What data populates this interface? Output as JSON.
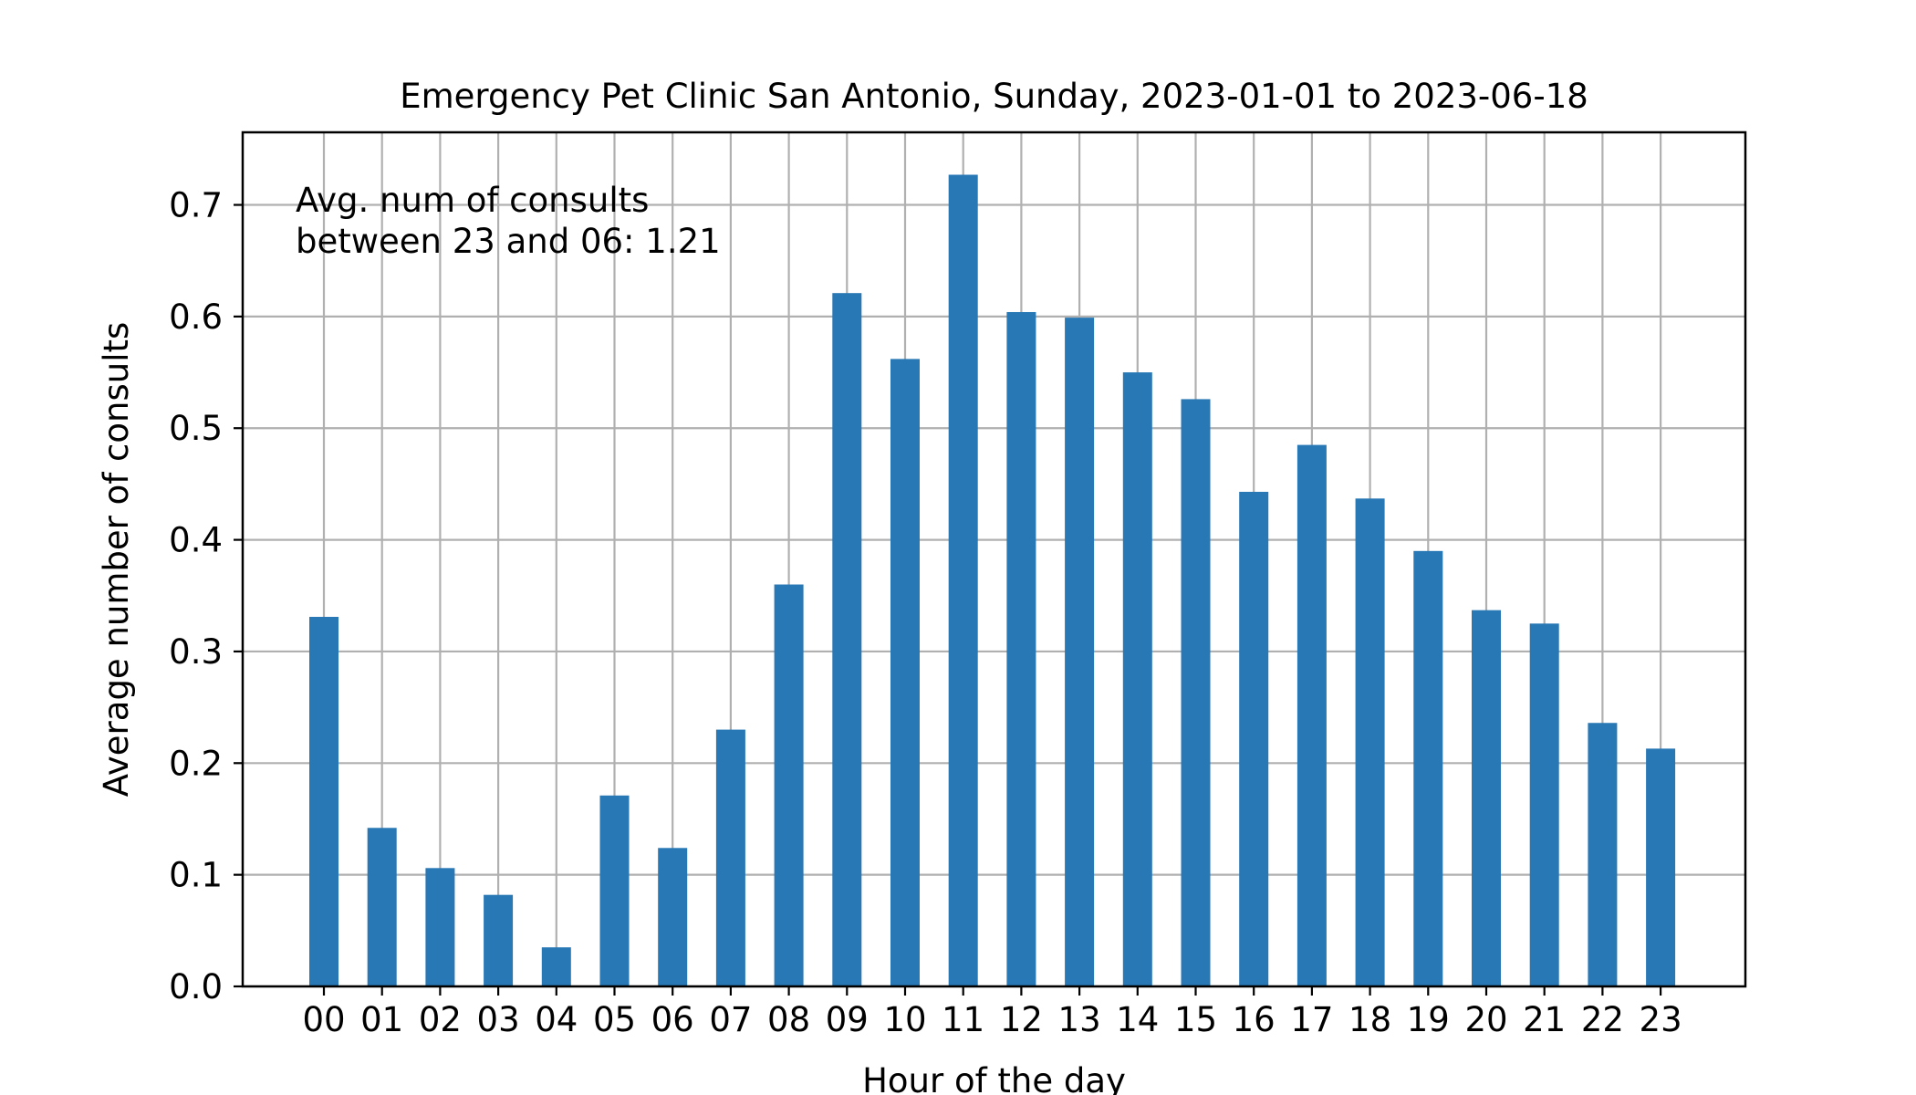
{
  "chart_data": {
    "type": "bar",
    "title": "Emergency Pet Clinic San Antonio, Sunday, 2023-01-01 to 2023-06-18",
    "xlabel": "Hour of the day",
    "ylabel": "Average number of consults",
    "annotation": [
      "Avg. num of consults",
      "between 23 and 06: 1.21"
    ],
    "categories": [
      "00",
      "01",
      "02",
      "03",
      "04",
      "05",
      "06",
      "07",
      "08",
      "09",
      "10",
      "11",
      "12",
      "13",
      "14",
      "15",
      "16",
      "17",
      "18",
      "19",
      "20",
      "21",
      "22",
      "23"
    ],
    "values": [
      0.331,
      0.142,
      0.106,
      0.082,
      0.035,
      0.171,
      0.124,
      0.23,
      0.36,
      0.621,
      0.562,
      0.727,
      0.604,
      0.599,
      0.55,
      0.526,
      0.443,
      0.485,
      0.437,
      0.39,
      0.337,
      0.325,
      0.236,
      0.213
    ],
    "ylim": [
      0,
      0.765
    ],
    "yticks": [
      0.0,
      0.1,
      0.2,
      0.3,
      0.4,
      0.5,
      0.6,
      0.7
    ],
    "ytick_labels": [
      "0.0",
      "0.1",
      "0.2",
      "0.3",
      "0.4",
      "0.5",
      "0.6",
      "0.7"
    ],
    "grid": true,
    "bar_color": "#2878b5"
  }
}
